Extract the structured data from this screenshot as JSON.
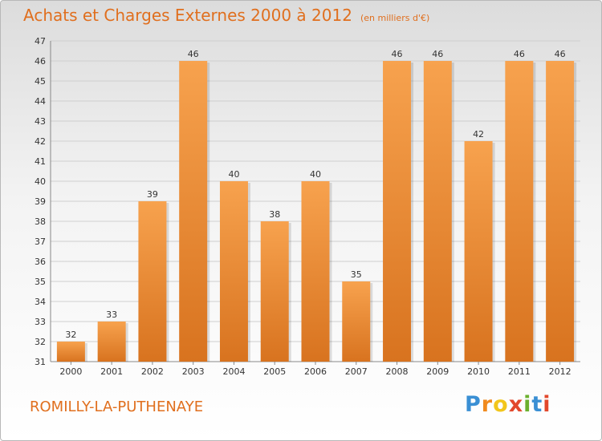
{
  "chart_data": {
    "type": "bar",
    "title": "Achats et Charges Externes 2000 à 2012",
    "subtitle": "(en milliers d'€)",
    "categories": [
      "2000",
      "2001",
      "2002",
      "2003",
      "2004",
      "2005",
      "2006",
      "2007",
      "2008",
      "2009",
      "2010",
      "2011",
      "2012"
    ],
    "values": [
      32,
      33,
      39,
      46,
      40,
      38,
      40,
      35,
      46,
      46,
      42,
      46,
      46
    ],
    "ylim": [
      31,
      47
    ],
    "yticks": [
      31,
      32,
      33,
      34,
      35,
      36,
      37,
      38,
      39,
      40,
      41,
      42,
      43,
      44,
      45,
      46,
      47
    ],
    "grid": true,
    "colors": {
      "bar_light": "#f7a24e",
      "bar_dark": "#d8731f",
      "title": "#e06f1e"
    }
  },
  "footer": {
    "city": "ROMILLY-LA-PUTHENAYE",
    "logo_letters": [
      {
        "ch": "P",
        "color": "#3a8fd4"
      },
      {
        "ch": "r",
        "color": "#f08a1e"
      },
      {
        "ch": "o",
        "color": "#f2c61b"
      },
      {
        "ch": "x",
        "color": "#e2482c"
      },
      {
        "ch": "i",
        "color": "#6bb02e"
      },
      {
        "ch": "t",
        "color": "#3a8fd4"
      },
      {
        "ch": "i",
        "color": "#e2482c"
      }
    ]
  }
}
